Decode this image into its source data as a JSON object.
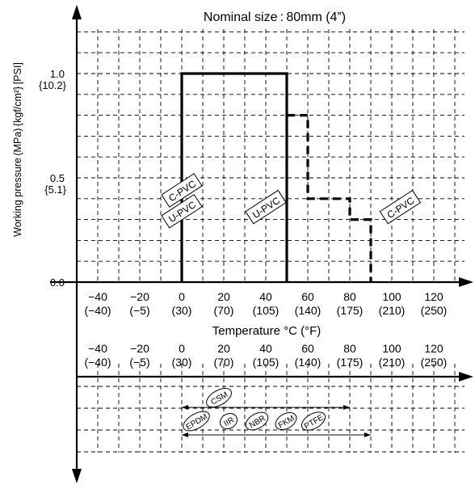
{
  "chart_data": {
    "type": "line",
    "title": "Nominal size : 80mm (4”)",
    "ylabel": "Working pressure (MPa) {kgf/cm²} [PSI]",
    "xlabel": "Temperature °C (°F)",
    "ylim": [
      0,
      1.0
    ],
    "xlim": [
      -50,
      140
    ],
    "x_ticks": [
      {
        "c": "−40",
        "f": "(−40)",
        "v": -40
      },
      {
        "c": "−20",
        "f": "(−5)",
        "v": -20
      },
      {
        "c": "0",
        "f": "(30)",
        "v": 0
      },
      {
        "c": "20",
        "f": "(70)",
        "v": 20
      },
      {
        "c": "40",
        "f": "(105)",
        "v": 40
      },
      {
        "c": "60",
        "f": "(140)",
        "v": 60
      },
      {
        "c": "80",
        "f": "(175)",
        "v": 80
      },
      {
        "c": "100",
        "f": "(210)",
        "v": 100
      },
      {
        "c": "120",
        "f": "(250)",
        "v": 120
      }
    ],
    "y_ticks": [
      {
        "label": "1.0",
        "sub": "{10.2}",
        "v": 1.0
      },
      {
        "label": "0.5",
        "sub": "{5.1}",
        "v": 0.5
      },
      {
        "label": "0.0",
        "sub": "",
        "v": 0.0
      }
    ],
    "series": [
      {
        "name": "U-PVC",
        "style": "solid",
        "points": [
          [
            0,
            0
          ],
          [
            0,
            1.0
          ],
          [
            50,
            1.0
          ],
          [
            50,
            0
          ]
        ]
      },
      {
        "name": "C-PVC",
        "style": "dashed",
        "points": [
          [
            50,
            0.8
          ],
          [
            60,
            0.8
          ],
          [
            60,
            0.4
          ],
          [
            80,
            0.4
          ],
          [
            80,
            0.3
          ],
          [
            90,
            0.3
          ],
          [
            90,
            0
          ]
        ]
      }
    ],
    "labels": [
      {
        "text": "C-PVC",
        "x": 0,
        "y": 0.44
      },
      {
        "text": "U-PVC",
        "x": 0,
        "y": 0.34
      },
      {
        "text": "U-PVC",
        "x": 40,
        "y": 0.36
      },
      {
        "text": "C-PVC",
        "x": 104,
        "y": 0.36
      }
    ],
    "materials": {
      "upper_range": {
        "from": 0,
        "to": 80,
        "items": [
          "CSM"
        ]
      },
      "lower_range": {
        "from": 0,
        "to": 90,
        "items": [
          "EPDM",
          "IIR",
          "NBR",
          "FKM",
          "PTFE"
        ]
      }
    },
    "grid": true
  }
}
